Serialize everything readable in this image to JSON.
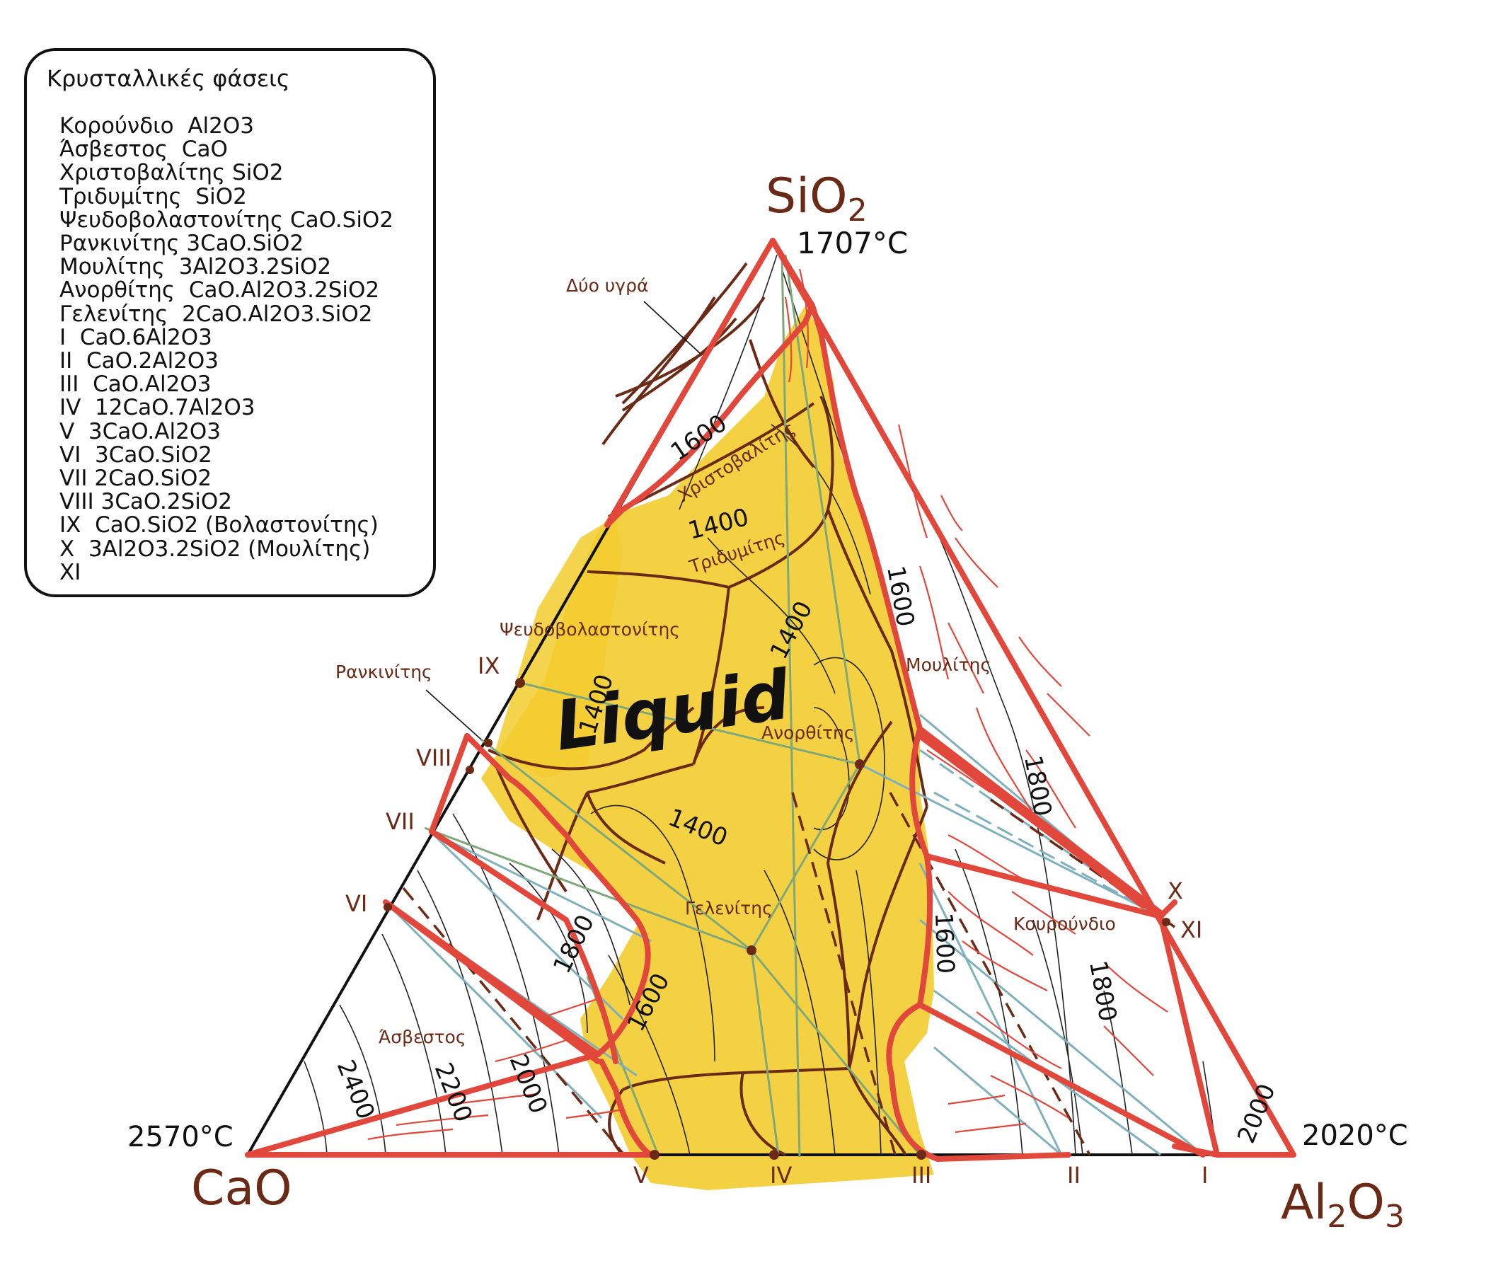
{
  "legend": {
    "title": "Κρυσταλλικές φάσεις",
    "items": [
      "Κορούνδιο  Al2O3",
      "Άσβεστος  CaO",
      "Χριστοβαλίτης SiO2",
      "Τριδυμίτης  SiO2",
      "Ψευδοβολαστονίτης CaO.SiO2",
      "Ρανκινίτης 3CaO.SiO2",
      "Μουλίτης  3Al2O3.2SiO2",
      "Ανορθίτης  CaO.Al2O3.2SiO2",
      "Γελενίτης  2CaO.Al2O3.SiO2",
      "I  CaO.6Al2O3",
      "II  CaO.2Al2O3",
      "III  CaO.Al2O3",
      "IV  12CaO.7Al2O3",
      "V  3CaO.Al2O3",
      "VI  3CaO.SiO2",
      "VII 2CaO.SiO2",
      "VIII 3CaO.2SiO2",
      "IX  CaO.SiO2 (Βολαστονίτης)",
      "X  3Al2O3.2SiO2 (Μουλίτης)",
      "XI"
    ]
  },
  "vertices": {
    "sio2": {
      "label": "SiO",
      "sub": "2",
      "temp": "1707°C"
    },
    "cao": {
      "label": "CaO",
      "temp": "2570°C"
    },
    "al2o3": {
      "a": "Al",
      "b": "2",
      "c": "O",
      "d": "3",
      "temp": "2020°C"
    }
  },
  "phase_labels": {
    "two_liquids": "Δύο υγρά",
    "cristobalite": "Χριστοβαλίτης",
    "tridymite": "Τριδυμίτης",
    "pseudowollastonite": "Ψευδοβολαστονίτης",
    "rankinite": "Ρανκινίτης",
    "mullite": "Μουλίτης",
    "anorthite": "Ανορθίτης",
    "gehlenite": "Γελενίτης",
    "corundum": "Κουρούνδιο",
    "lime": "Άσβεστος",
    "liquid": "Liquid"
  },
  "compound_markers": {
    "i": "I",
    "ii": "II",
    "iii": "III",
    "iv": "IV",
    "v": "V",
    "vi": "VI",
    "vii": "VII",
    "viii": "VIII",
    "ix": "IX",
    "x": "X",
    "xi": "XI"
  },
  "isotherms": {
    "t1600_top": "1600",
    "t1400_mid": "1400",
    "t1400_right": "1400",
    "t1400_left": "1400",
    "t1400_low": "1400",
    "t1600_right": "1600",
    "t1800_right": "1800",
    "t1600_al": "1600",
    "t1800_al": "1800",
    "t2000_al": "2000",
    "t1800_lime": "1800",
    "t1600_lime": "1600",
    "t2400": "2400",
    "t2200": "2200",
    "t2000": "2000"
  },
  "colors": {
    "boundary_red": "#e2473c",
    "liquid_yellow": "#f2cc2e",
    "field_brown": "#6b2a16",
    "tie_green": "#7fa87a",
    "tie_blue": "#7fb0bd"
  }
}
